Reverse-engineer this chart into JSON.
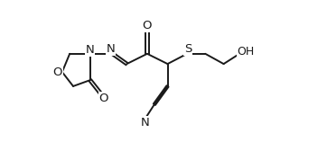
{
  "bg_color": "#ffffff",
  "line_color": "#1a1a1a",
  "line_width": 1.4,
  "font_size": 8.5,
  "figw": 3.62,
  "figh": 1.58,
  "dpi": 100,
  "xlim": [
    0.0,
    10.5
  ],
  "ylim": [
    0.5,
    7.5
  ]
}
